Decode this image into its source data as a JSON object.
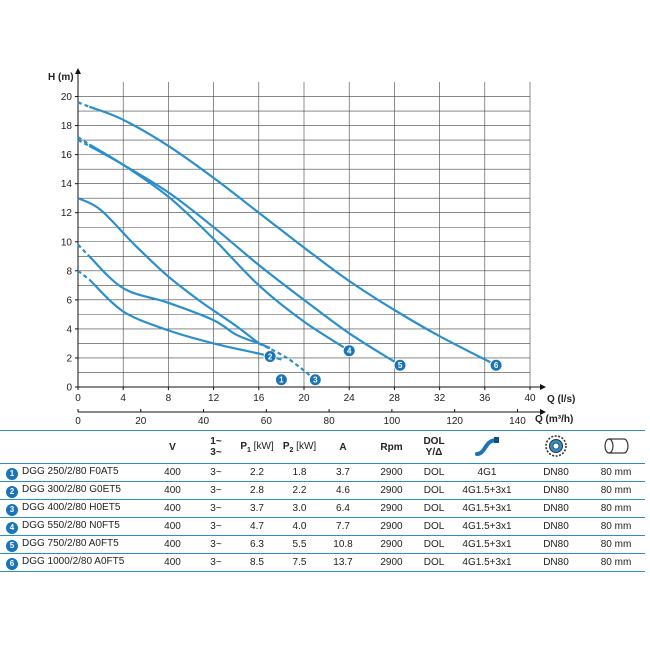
{
  "chart_data": {
    "type": "line",
    "ylabel": "H (m)",
    "xlabel": "Q (l/s)",
    "x2label": "Q (m³/h)",
    "xlim": [
      0,
      40
    ],
    "ylim": [
      0,
      21
    ],
    "x_ticks": [
      "0",
      "4",
      "8",
      "12",
      "16",
      "20",
      "24",
      "28",
      "32",
      "36",
      "40"
    ],
    "x2_ticks": [
      "0",
      "20",
      "40",
      "60",
      "80",
      "100",
      "120",
      "140"
    ],
    "y_ticks": [
      "0",
      "2",
      "4",
      "6",
      "8",
      "10",
      "12",
      "14",
      "16",
      "18",
      "20"
    ],
    "grid": true,
    "line_color": "#2a8fcb",
    "badge_color": "#1a74b8",
    "series": [
      {
        "label": "1",
        "dashed_points": [
          [
            0,
            8.0
          ],
          [
            1.0,
            7.4
          ]
        ],
        "points": [
          [
            1.0,
            7.4
          ],
          [
            4,
            5.2
          ],
          [
            8,
            3.9
          ],
          [
            12,
            3.0
          ],
          [
            16,
            2.3
          ],
          [
            18,
            1.9
          ]
        ],
        "badge": [
          18,
          0.5
        ]
      },
      {
        "label": "2",
        "dashed_points": [
          [
            0,
            9.8
          ],
          [
            1.0,
            9.0
          ]
        ],
        "points": [
          [
            1.0,
            9.0
          ],
          [
            4,
            6.8
          ],
          [
            8,
            5.8
          ],
          [
            12,
            4.6
          ],
          [
            14,
            3.6
          ],
          [
            16,
            3.0
          ],
          [
            17,
            2.7
          ]
        ],
        "badge": [
          17,
          2.1
        ]
      },
      {
        "label": "3",
        "dashed_points": [
          [
            16,
            3.0
          ],
          [
            18.5,
            2.0
          ],
          [
            21,
            0.5
          ]
        ],
        "points": [
          [
            0,
            13.0
          ],
          [
            2,
            12.2
          ],
          [
            5,
            9.8
          ],
          [
            8,
            7.6
          ],
          [
            11,
            5.8
          ],
          [
            14,
            4.2
          ],
          [
            16,
            3.0
          ]
        ],
        "badge": [
          21,
          0.5
        ]
      },
      {
        "label": "4",
        "dashed_points": [
          [
            0,
            17.2
          ],
          [
            1.0,
            16.7
          ]
        ],
        "points": [
          [
            1.0,
            16.7
          ],
          [
            4,
            15.3
          ],
          [
            8,
            13.1
          ],
          [
            12,
            10.2
          ],
          [
            16,
            7.0
          ],
          [
            20,
            4.5
          ],
          [
            24,
            2.5
          ]
        ],
        "badge": [
          24,
          2.5
        ]
      },
      {
        "label": "5",
        "dashed_points": [
          [
            0,
            17.0
          ],
          [
            1.0,
            16.6
          ]
        ],
        "points": [
          [
            1.0,
            16.6
          ],
          [
            4,
            15.3
          ],
          [
            8,
            13.4
          ],
          [
            12,
            11.0
          ],
          [
            16,
            8.4
          ],
          [
            20,
            6.0
          ],
          [
            24,
            3.7
          ],
          [
            28.5,
            1.5
          ]
        ],
        "badge": [
          28.5,
          1.5
        ]
      },
      {
        "label": "6",
        "dashed_points": [
          [
            0,
            19.6
          ],
          [
            1.0,
            19.3
          ]
        ],
        "points": [
          [
            1.0,
            19.3
          ],
          [
            4,
            18.4
          ],
          [
            8,
            16.6
          ],
          [
            12,
            14.4
          ],
          [
            16,
            12.0
          ],
          [
            20,
            9.6
          ],
          [
            24,
            7.3
          ],
          [
            28,
            5.3
          ],
          [
            32,
            3.5
          ],
          [
            37,
            1.5
          ]
        ],
        "badge": [
          37,
          1.5
        ]
      }
    ]
  },
  "table": {
    "headers": {
      "v": "V",
      "phase_top": "1~",
      "phase_bottom": "3~",
      "p1_main": "P",
      "p1_sub": "1",
      "p1_unit": "[kW]",
      "p2_main": "P",
      "p2_sub": "2",
      "p2_unit": "[kW]",
      "a": "A",
      "rpm": "Rpm",
      "dol_top": "DOL",
      "dol_bottom": "Y/Δ",
      "cable_icon": "cable-icon",
      "flange_icon": "flange-icon",
      "pipe_icon": "pipe-icon"
    },
    "rows": [
      {
        "num": "1",
        "model": "DGG 250/2/80 F0AT5",
        "v": "400",
        "phase": "3~",
        "p1": "2.2",
        "p2": "1.8",
        "a": "3.7",
        "rpm": "2900",
        "dol": "DOL",
        "cable": "4G1",
        "dn": "DN80",
        "size": "80 mm"
      },
      {
        "num": "2",
        "model": "DGG 300/2/80 G0ET5",
        "v": "400",
        "phase": "3~",
        "p1": "2.8",
        "p2": "2.2",
        "a": "4.6",
        "rpm": "2900",
        "dol": "DOL",
        "cable": "4G1.5+3x1",
        "dn": "DN80",
        "size": "80 mm"
      },
      {
        "num": "3",
        "model": "DGG 400/2/80 H0ET5",
        "v": "400",
        "phase": "3~",
        "p1": "3.7",
        "p2": "3.0",
        "a": "6.4",
        "rpm": "2900",
        "dol": "DOL",
        "cable": "4G1.5+3x1",
        "dn": "DN80",
        "size": "80 mm"
      },
      {
        "num": "4",
        "model": "DGG 550/2/80 N0FT5",
        "v": "400",
        "phase": "3~",
        "p1": "4.7",
        "p2": "4.0",
        "a": "7.7",
        "rpm": "2900",
        "dol": "DOL",
        "cable": "4G1.5+3x1",
        "dn": "DN80",
        "size": "80 mm"
      },
      {
        "num": "5",
        "model": "DGG 750/2/80 A0FT5",
        "v": "400",
        "phase": "3~",
        "p1": "6.3",
        "p2": "5.5",
        "a": "10.8",
        "rpm": "2900",
        "dol": "DOL",
        "cable": "4G1.5+3x1",
        "dn": "DN80",
        "size": "80 mm"
      },
      {
        "num": "6",
        "model": "DGG 1000/2/80 A0FT5",
        "v": "400",
        "phase": "3~",
        "p1": "8.5",
        "p2": "7.5",
        "a": "13.7",
        "rpm": "2900",
        "dol": "DOL",
        "cable": "4G1.5+3x1",
        "dn": "DN80",
        "size": "80 mm"
      }
    ]
  }
}
